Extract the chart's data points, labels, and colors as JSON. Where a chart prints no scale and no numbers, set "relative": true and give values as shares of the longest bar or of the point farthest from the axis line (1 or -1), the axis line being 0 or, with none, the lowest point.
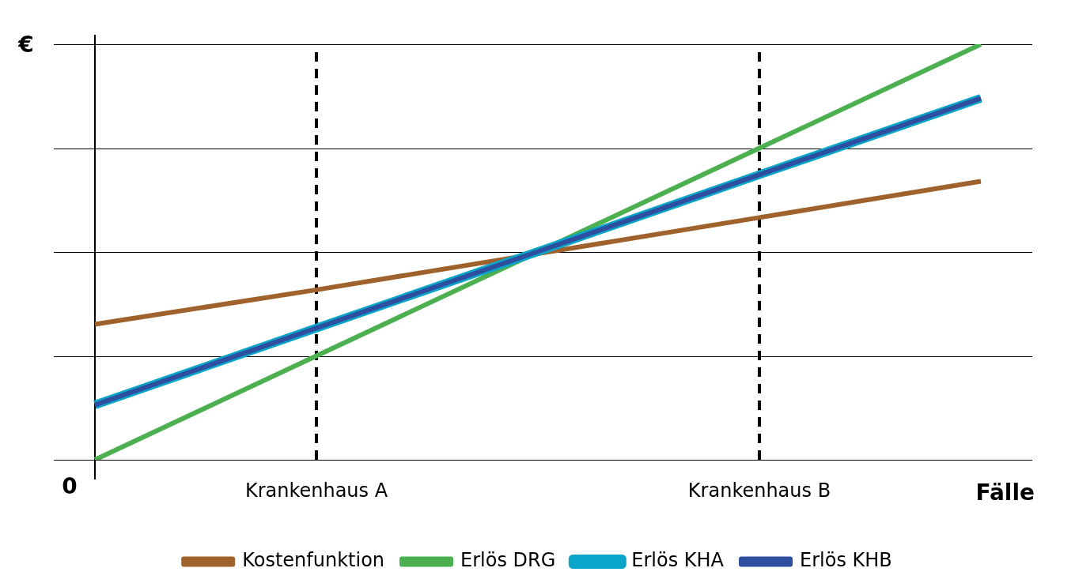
{
  "chart_data": {
    "type": "line",
    "relative": true,
    "ylabel": "€",
    "xlabel": "Fälle",
    "annotations": [
      "0"
    ],
    "categories": [
      null,
      "Krankenhaus A",
      null,
      "Krankenhaus B",
      null
    ],
    "series": [
      {
        "name": "Kostenfunktion",
        "color": "#a0622d",
        "values": [
          0.326,
          0.409,
          0.496,
          0.583,
          0.67
        ]
      },
      {
        "name": "Erlös DRG",
        "color": "#4caf50",
        "values": [
          0,
          0.25,
          0.5,
          0.75,
          1
        ]
      },
      {
        "name": "Erlös KHA",
        "color": "#0aa5c8",
        "values": [
          0.132,
          0.317,
          0.501,
          0.686,
          0.87
        ]
      },
      {
        "name": "Erlös KHB",
        "color": "#2e4fa0",
        "values": [
          0.132,
          0.317,
          0.501,
          0.686,
          0.87
        ]
      }
    ],
    "ref_lines": [
      {
        "axis": "x",
        "value": "Krankenhaus A",
        "color": "#000000",
        "line_style": "dashed"
      },
      {
        "axis": "x",
        "value": "Krankenhaus B",
        "color": "#000000",
        "line_style": "dashed"
      }
    ],
    "grid": "y",
    "legend": "bottom",
    "marker": "none",
    "line_style": "solid"
  }
}
